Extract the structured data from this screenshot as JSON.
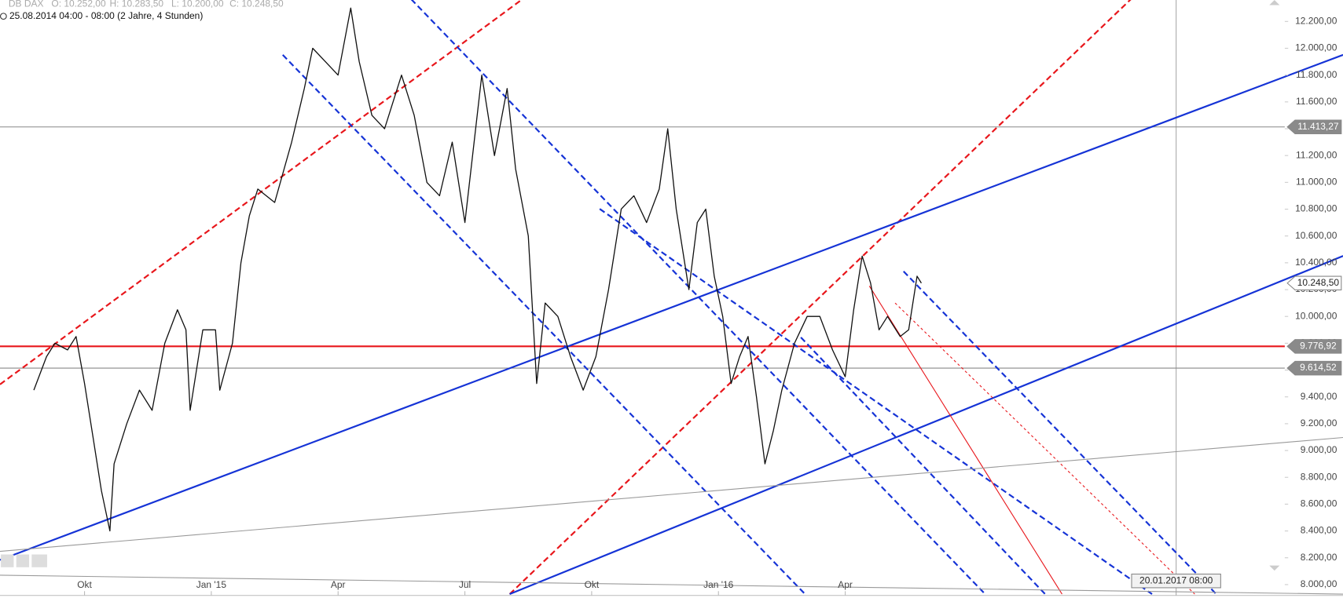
{
  "chart_data": {
    "type": "line",
    "title": "DB DAX",
    "ohlc_labels": [
      "O: 10.252,00",
      "H: 10.283,50",
      "L: 10.200,00",
      "C: 10.248,50"
    ],
    "subtitle": "25.08.2014 04:00 - 08:00 (2 Jahre, 4 Stunden)",
    "xlim": [
      0,
      30.4
    ],
    "ylim": [
      7900,
      12360
    ],
    "grid": false,
    "xticks": [
      {
        "value": 2,
        "label": "Okt"
      },
      {
        "value": 5,
        "label": "Jan '15"
      },
      {
        "value": 8,
        "label": "Apr"
      },
      {
        "value": 11,
        "label": "Jul"
      },
      {
        "value": 14,
        "label": "Okt"
      },
      {
        "value": 17,
        "label": "Jan '16"
      },
      {
        "value": 20,
        "label": "Apr"
      }
    ],
    "yticks": [
      {
        "value": 8000,
        "label": "8.000,00"
      },
      {
        "value": 8200,
        "label": "8.200,00"
      },
      {
        "value": 8400,
        "label": "8.400,00"
      },
      {
        "value": 8600,
        "label": "8.600,00"
      },
      {
        "value": 8800,
        "label": "8.800,00"
      },
      {
        "value": 9000,
        "label": "9.000,00"
      },
      {
        "value": 9200,
        "label": "9.200,00"
      },
      {
        "value": 9400,
        "label": "9.400,00"
      },
      {
        "value": 9600,
        "label": "9.600,00"
      },
      {
        "value": 9800,
        "label": "9.800,00"
      },
      {
        "value": 10000,
        "label": "10.000,00"
      },
      {
        "value": 10200,
        "label": "10.200,00"
      },
      {
        "value": 10400,
        "label": "10.400,00"
      },
      {
        "value": 10600,
        "label": "10.600,00"
      },
      {
        "value": 10800,
        "label": "10.800,00"
      },
      {
        "value": 11000,
        "label": "11.000,00"
      },
      {
        "value": 11200,
        "label": "11.200,00"
      },
      {
        "value": 11400,
        "label": "11.400,00"
      },
      {
        "value": 11600,
        "label": "11.600,00"
      },
      {
        "value": 11800,
        "label": "11.800,00"
      },
      {
        "value": 12000,
        "label": "12.000,00"
      },
      {
        "value": 12200,
        "label": "12.200,00"
      }
    ],
    "color": "#111111",
    "x": [
      0.8,
      1.1,
      1.3,
      1.6,
      1.8,
      2.0,
      2.2,
      2.4,
      2.6,
      2.7,
      3.0,
      3.3,
      3.6,
      3.9,
      4.2,
      4.4,
      4.5,
      4.8,
      5.1,
      5.2,
      5.5,
      5.7,
      5.9,
      6.1,
      6.5,
      6.9,
      7.2,
      7.4,
      7.7,
      8.0,
      8.3,
      8.5,
      8.8,
      9.1,
      9.5,
      9.8,
      10.1,
      10.4,
      10.7,
      11.0,
      11.4,
      11.7,
      12.0,
      12.2,
      12.5,
      12.7,
      12.9,
      13.2,
      13.5,
      13.8,
      14.1,
      14.4,
      14.7,
      15.0,
      15.3,
      15.6,
      15.8,
      16.0,
      16.3,
      16.5,
      16.7,
      16.9,
      17.1,
      17.3,
      17.5,
      17.7,
      17.9,
      18.1,
      18.3,
      18.5,
      18.8,
      19.1,
      19.4,
      19.7,
      20.0,
      20.2,
      20.4,
      20.6,
      20.8,
      21.0,
      21.3,
      21.5,
      21.7,
      21.8
    ],
    "values": [
      9450,
      9700,
      9800,
      9750,
      9850,
      9500,
      9100,
      8700,
      8400,
      8900,
      9200,
      9450,
      9300,
      9800,
      10050,
      9900,
      9300,
      9900,
      9900,
      9450,
      9800,
      10400,
      10750,
      10950,
      10850,
      11300,
      11700,
      12000,
      11900,
      11800,
      12300,
      11900,
      11500,
      11400,
      11800,
      11500,
      11000,
      10900,
      11300,
      10700,
      11800,
      11200,
      11700,
      11100,
      10600,
      9500,
      10100,
      10000,
      9700,
      9450,
      9700,
      10200,
      10800,
      10900,
      10700,
      10950,
      11400,
      10800,
      10200,
      10700,
      10800,
      10300,
      10000,
      9500,
      9700,
      9850,
      9400,
      8900,
      9150,
      9450,
      9800,
      10000,
      10000,
      9750,
      9550,
      10050,
      10450,
      10250,
      9900,
      10000,
      9850,
      9900,
      10300,
      10248.5
    ],
    "levels": [
      {
        "value": 11413.27,
        "label": "11.413,27",
        "color": "#888888",
        "line": true,
        "tag": "#8a8a8a"
      },
      {
        "value": 10248.5,
        "label": "10.248,50",
        "color": "#888888",
        "line": false,
        "tag": "#ffffff"
      },
      {
        "value": 9776.92,
        "label": "9.776,92",
        "color": "#e8161b",
        "line": true,
        "tag": "#8a8a8a"
      },
      {
        "value": 9614.52,
        "label": "9.614,52",
        "color": "#888888",
        "line": true,
        "tag": "#8a8a8a"
      }
    ],
    "drawings": [
      {
        "color": "#e8161b",
        "dash": true,
        "width": 2,
        "x": [
          0,
          12.36
        ],
        "values": [
          9493,
          12366
        ]
      },
      {
        "color": "#e8161b",
        "dash": true,
        "width": 2,
        "x": [
          12.06,
          26.76
        ],
        "values": [
          7929,
          12366
        ]
      },
      {
        "color": "#1533d6",
        "dash": true,
        "width": 2,
        "x": [
          6.69,
          19.05
        ],
        "values": [
          11951,
          7929
        ]
      },
      {
        "color": "#1533d6",
        "dash": true,
        "width": 2,
        "x": [
          9.73,
          23.31
        ],
        "values": [
          12366,
          7929
        ]
      },
      {
        "color": "#1533d6",
        "dash": true,
        "width": 2,
        "x": [
          14.19,
          27.26
        ],
        "values": [
          10802,
          7929
        ]
      },
      {
        "color": "#1533d6",
        "dash": true,
        "width": 2,
        "x": [
          18.95,
          24.73
        ],
        "values": [
          9844,
          7929
        ]
      },
      {
        "color": "#1533d6",
        "dash": true,
        "width": 2,
        "x": [
          21.38,
          28.78
        ],
        "values": [
          10336,
          7929
        ]
      },
      {
        "color": "#1533d6",
        "dash": false,
        "width": 2,
        "x": [
          0,
          31.78
        ],
        "values": [
          8184,
          11951
        ]
      },
      {
        "color": "#1533d6",
        "dash": false,
        "width": 2,
        "x": [
          12.06,
          31.78
        ],
        "values": [
          7929,
          10451
        ]
      },
      {
        "color": "#e8161b",
        "dash": false,
        "width": 1,
        "x": [
          20.57,
          25.13
        ],
        "values": [
          10227,
          7929
        ]
      },
      {
        "color": "#e8161b",
        "dash": true,
        "width": 1,
        "x": [
          21.18,
          28.27
        ],
        "values": [
          10100,
          7929
        ]
      },
      {
        "color": "#999999",
        "dash": false,
        "width": 1,
        "x": [
          0,
          31.78
        ],
        "values": [
          8248,
          9097
        ]
      },
      {
        "color": "#999999",
        "dash": false,
        "width": 1,
        "x": [
          0,
          31.78
        ],
        "values": [
          8070,
          7929
        ]
      }
    ],
    "date_marker": {
      "x": 27.83,
      "label": "20.01.2017 08:00"
    }
  }
}
